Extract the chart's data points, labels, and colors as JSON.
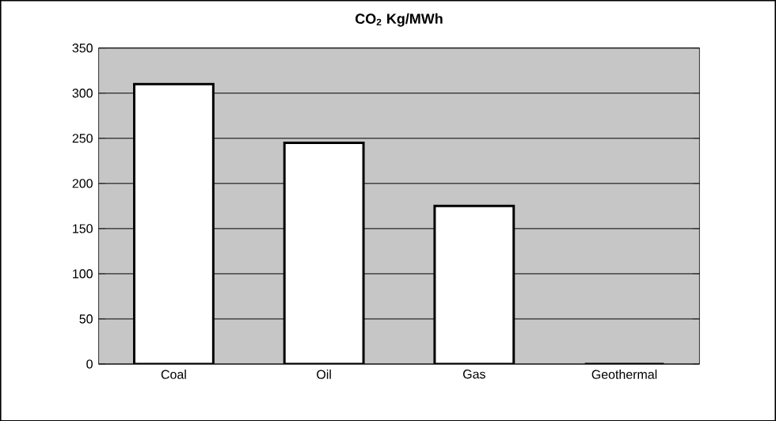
{
  "chart_data": {
    "type": "bar",
    "title": "CO$_{2}$ Kg/MWh",
    "categories": [
      "Coal",
      "Oil",
      "Gas",
      "Geothermal"
    ],
    "values": [
      310,
      245,
      175,
      0
    ],
    "color": "#ffffff",
    "ylim": [
      0,
      350
    ],
    "yticks": [
      0,
      50,
      100,
      150,
      200,
      250,
      300,
      350
    ],
    "grid": "y"
  }
}
